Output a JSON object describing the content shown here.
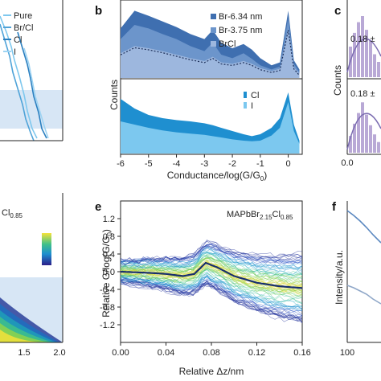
{
  "colors": {
    "pure": "#7fc8ee",
    "brcl_mix": "#4fa3d8",
    "cl": "#2a7fc0",
    "i": "#9ed4f3",
    "br634": "#3f6fb0",
    "br375": "#6c95cb",
    "brcl": "#9db7de",
    "cl_b": "#1f8fd0",
    "i_b": "#7cc8ef",
    "density_line": "#18306e",
    "f_upper": "#5b88c0",
    "f_lower": "#8fa7c8",
    "c_bars": "#b9a9d6",
    "c_fit": "#7a6bb0",
    "highlight": "#d7e6f5"
  },
  "panels": {
    "b": "b",
    "c": "c",
    "e": "e",
    "f": "f"
  },
  "panel_a_top": {
    "legend": [
      "Pure",
      "Br/Cl",
      "Cl",
      "I"
    ]
  },
  "panel_b": {
    "ylabel": "Counts",
    "xlabel": "Conductance/log(G/G",
    "xlabel_sub": "0",
    "xlabel_end": ")",
    "xticks": [
      "-6",
      "-5",
      "-4",
      "-3",
      "-2",
      "-1",
      "0"
    ],
    "legend_top": [
      "Br-6.34 nm",
      "Br-3.75 nm",
      "BrCl"
    ],
    "legend_bottom": [
      "Cl",
      "I"
    ]
  },
  "panel_c": {
    "ylabel": "Counts",
    "annot_top": "0.18 ±",
    "annot_bottom": "0.18 ±",
    "xticks": [
      "0.0"
    ]
  },
  "panel_d": {
    "sample_fragment": "Cl",
    "sample_sub": "0.85",
    "xticks": [
      "1.5",
      "2.0"
    ]
  },
  "panel_e": {
    "sample": "MAPbBr",
    "sample_sub1": "2.15",
    "sample_mid": "Cl",
    "sample_sub2": "0.85",
    "ylabel": "Relative G/log(G/G",
    "ylabel_sub": "0",
    "ylabel_end": ")",
    "xlabel": "Relative Δz/nm",
    "xticks": [
      "0.00",
      "0.04",
      "0.08",
      "0.12",
      "0.16"
    ],
    "yticks": [
      "1.2",
      "0.8",
      "0.4",
      "0.0",
      "-0.4",
      "-0.8",
      "-1.2"
    ]
  },
  "panel_f": {
    "ylabel": "Intensity/a.u.",
    "xticks": [
      "100"
    ]
  },
  "chart_data": [
    {
      "type": "line",
      "panel": "b",
      "title": "",
      "xlabel": "Conductance/log(G/G0)",
      "ylabel": "Counts",
      "xlim": [
        -6,
        0.5
      ],
      "x": [
        -6.0,
        -5.5,
        -5.0,
        -4.5,
        -4.0,
        -3.5,
        -3.0,
        -2.7,
        -2.4,
        -2.0,
        -1.6,
        -1.3,
        -1.0,
        -0.6,
        -0.3,
        0.0,
        0.2,
        0.4
      ],
      "series": [
        {
          "name": "Br-6.34 nm",
          "values": [
            0.7,
            0.95,
            0.88,
            0.8,
            0.72,
            0.62,
            0.55,
            0.68,
            0.5,
            0.42,
            0.48,
            0.4,
            0.28,
            0.18,
            0.22,
            0.95,
            0.25,
            0.12
          ]
        },
        {
          "name": "Br-3.75 nm",
          "values": [
            0.55,
            0.75,
            0.7,
            0.62,
            0.55,
            0.45,
            0.38,
            0.5,
            0.33,
            0.28,
            0.35,
            0.27,
            0.18,
            0.12,
            0.16,
            0.85,
            0.2,
            0.08
          ]
        },
        {
          "name": "BrCl",
          "values": [
            0.35,
            0.45,
            0.42,
            0.38,
            0.33,
            0.28,
            0.24,
            0.3,
            0.22,
            0.2,
            0.24,
            0.2,
            0.14,
            0.1,
            0.13,
            0.7,
            0.15,
            0.06
          ]
        },
        {
          "name": "Cl",
          "values": [
            0.85,
            0.7,
            0.6,
            0.55,
            0.52,
            0.5,
            0.47,
            0.44,
            0.4,
            0.35,
            0.3,
            0.27,
            0.3,
            0.4,
            0.55,
            0.95,
            0.45,
            0.2
          ]
        },
        {
          "name": "I",
          "values": [
            0.5,
            0.45,
            0.4,
            0.36,
            0.33,
            0.31,
            0.29,
            0.27,
            0.25,
            0.22,
            0.2,
            0.19,
            0.2,
            0.28,
            0.4,
            0.8,
            0.35,
            0.15
          ]
        }
      ]
    },
    {
      "type": "line",
      "panel": "e",
      "title": "MAPbBr2.15Cl0.85",
      "xlabel": "Relative Δz/nm",
      "ylabel": "Relative G/log(G/G0)",
      "xlim": [
        0.0,
        0.16
      ],
      "ylim": [
        -1.6,
        1.6
      ],
      "x": [
        0.0,
        0.02,
        0.04,
        0.055,
        0.065,
        0.075,
        0.085,
        0.1,
        0.12,
        0.14,
        0.16
      ],
      "series": [
        {
          "name": "average",
          "values": [
            0.0,
            -0.02,
            -0.05,
            -0.1,
            -0.05,
            0.2,
            0.1,
            -0.1,
            -0.25,
            -0.33,
            -0.37
          ]
        }
      ]
    }
  ]
}
